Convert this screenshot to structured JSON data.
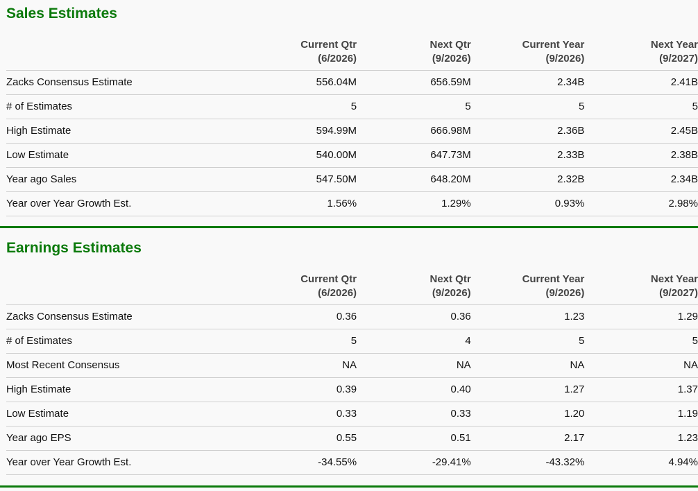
{
  "sales": {
    "title": "Sales Estimates",
    "headers": [
      {
        "line1": "Current Qtr",
        "line2": "(6/2026)"
      },
      {
        "line1": "Next Qtr",
        "line2": "(9/2026)"
      },
      {
        "line1": "Current Year",
        "line2": "(9/2026)"
      },
      {
        "line1": "Next Year",
        "line2": "(9/2027)"
      }
    ],
    "rows": [
      {
        "label": "Zacks Consensus Estimate",
        "values": [
          "556.04M",
          "656.59M",
          "2.34B",
          "2.41B"
        ]
      },
      {
        "label": "# of Estimates",
        "values": [
          "5",
          "5",
          "5",
          "5"
        ]
      },
      {
        "label": "High Estimate",
        "values": [
          "594.99M",
          "666.98M",
          "2.36B",
          "2.45B"
        ]
      },
      {
        "label": "Low Estimate",
        "values": [
          "540.00M",
          "647.73M",
          "2.33B",
          "2.38B"
        ]
      },
      {
        "label": "Year ago Sales",
        "values": [
          "547.50M",
          "648.20M",
          "2.32B",
          "2.34B"
        ]
      },
      {
        "label": "Year over Year Growth Est.",
        "values": [
          "1.56%",
          "1.29%",
          "0.93%",
          "2.98%"
        ]
      }
    ]
  },
  "earnings": {
    "title": "Earnings Estimates",
    "headers": [
      {
        "line1": "Current Qtr",
        "line2": "(6/2026)"
      },
      {
        "line1": "Next Qtr",
        "line2": "(9/2026)"
      },
      {
        "line1": "Current Year",
        "line2": "(9/2026)"
      },
      {
        "line1": "Next Year",
        "line2": "(9/2027)"
      }
    ],
    "rows": [
      {
        "label": "Zacks Consensus Estimate",
        "values": [
          "0.36",
          "0.36",
          "1.23",
          "1.29"
        ]
      },
      {
        "label": "# of Estimates",
        "values": [
          "5",
          "4",
          "5",
          "5"
        ]
      },
      {
        "label": "Most Recent Consensus",
        "values": [
          "NA",
          "NA",
          "NA",
          "NA"
        ]
      },
      {
        "label": "High Estimate",
        "values": [
          "0.39",
          "0.40",
          "1.27",
          "1.37"
        ]
      },
      {
        "label": "Low Estimate",
        "values": [
          "0.33",
          "0.33",
          "1.20",
          "1.19"
        ]
      },
      {
        "label": "Year ago EPS",
        "values": [
          "0.55",
          "0.51",
          "2.17",
          "1.23"
        ]
      },
      {
        "label": "Year over Year Growth Est.",
        "values": [
          "-34.55%",
          "-29.41%",
          "-43.32%",
          "4.94%"
        ]
      }
    ]
  },
  "colors": {
    "accent": "#0b7a0b",
    "rule": "#cfcfcf",
    "header_text": "#444444"
  }
}
